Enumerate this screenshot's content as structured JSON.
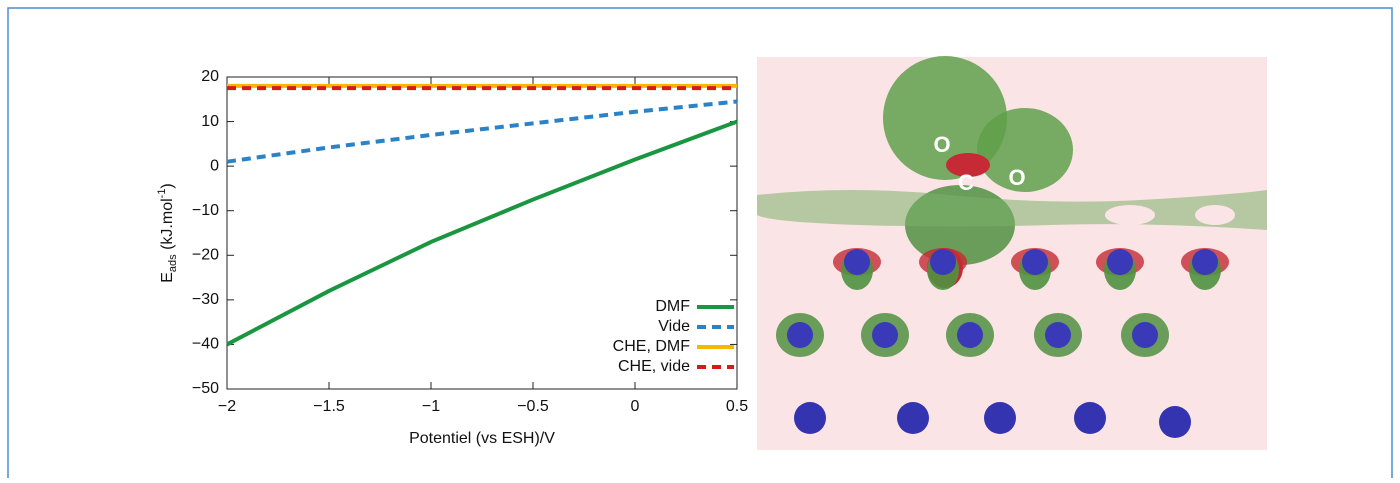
{
  "chart_data": {
    "type": "line",
    "xlabel": "Potentiel (vs ESH)/V",
    "ylabel": {
      "main": "E",
      "sub": "ads",
      "unit": " (kJ.mol",
      "sup": "-1",
      "end": ")"
    },
    "xlim": [
      -2,
      0.5
    ],
    "ylim": [
      -50,
      20
    ],
    "xticks": [
      {
        "value": -2,
        "label": "−2"
      },
      {
        "value": -1.5,
        "label": "−1.5"
      },
      {
        "value": -1,
        "label": "−1"
      },
      {
        "value": -0.5,
        "label": "−0.5"
      },
      0,
      0.5
    ],
    "yticks": [
      {
        "value": -50,
        "label": "−50"
      },
      {
        "value": -40,
        "label": "−40"
      },
      {
        "value": -30,
        "label": "−30"
      },
      {
        "value": -20,
        "label": "−20"
      },
      {
        "value": -10,
        "label": "−10"
      },
      0,
      10,
      20
    ],
    "grid": false,
    "legend": "lower right",
    "series": [
      {
        "name": "DMF",
        "color": "#1a9641",
        "style": "solid",
        "x": [
          -2,
          -1.5,
          -1,
          -0.5,
          0,
          0.5
        ],
        "values": [
          -40,
          -28,
          -17,
          -7.5,
          1.5,
          10
        ]
      },
      {
        "name": "Vide",
        "color": "#2b83c6",
        "style": "dashed",
        "x": [
          -2,
          -1.5,
          -1,
          -0.5,
          0,
          0.5
        ],
        "values": [
          1,
          4.2,
          7,
          9.6,
          12.2,
          14.5
        ]
      },
      {
        "name": "CHE, DMF",
        "color": "#f5b800",
        "style": "solid",
        "x": [
          -2,
          0.5
        ],
        "values": [
          18,
          18
        ]
      },
      {
        "name": "CHE, vide",
        "color": "#d7191c",
        "style": "dashed",
        "x": [
          -2,
          0.5
        ],
        "values": [
          17.5,
          17.5
        ]
      }
    ]
  },
  "image": {
    "labels": [
      "O",
      "C",
      "O"
    ]
  }
}
